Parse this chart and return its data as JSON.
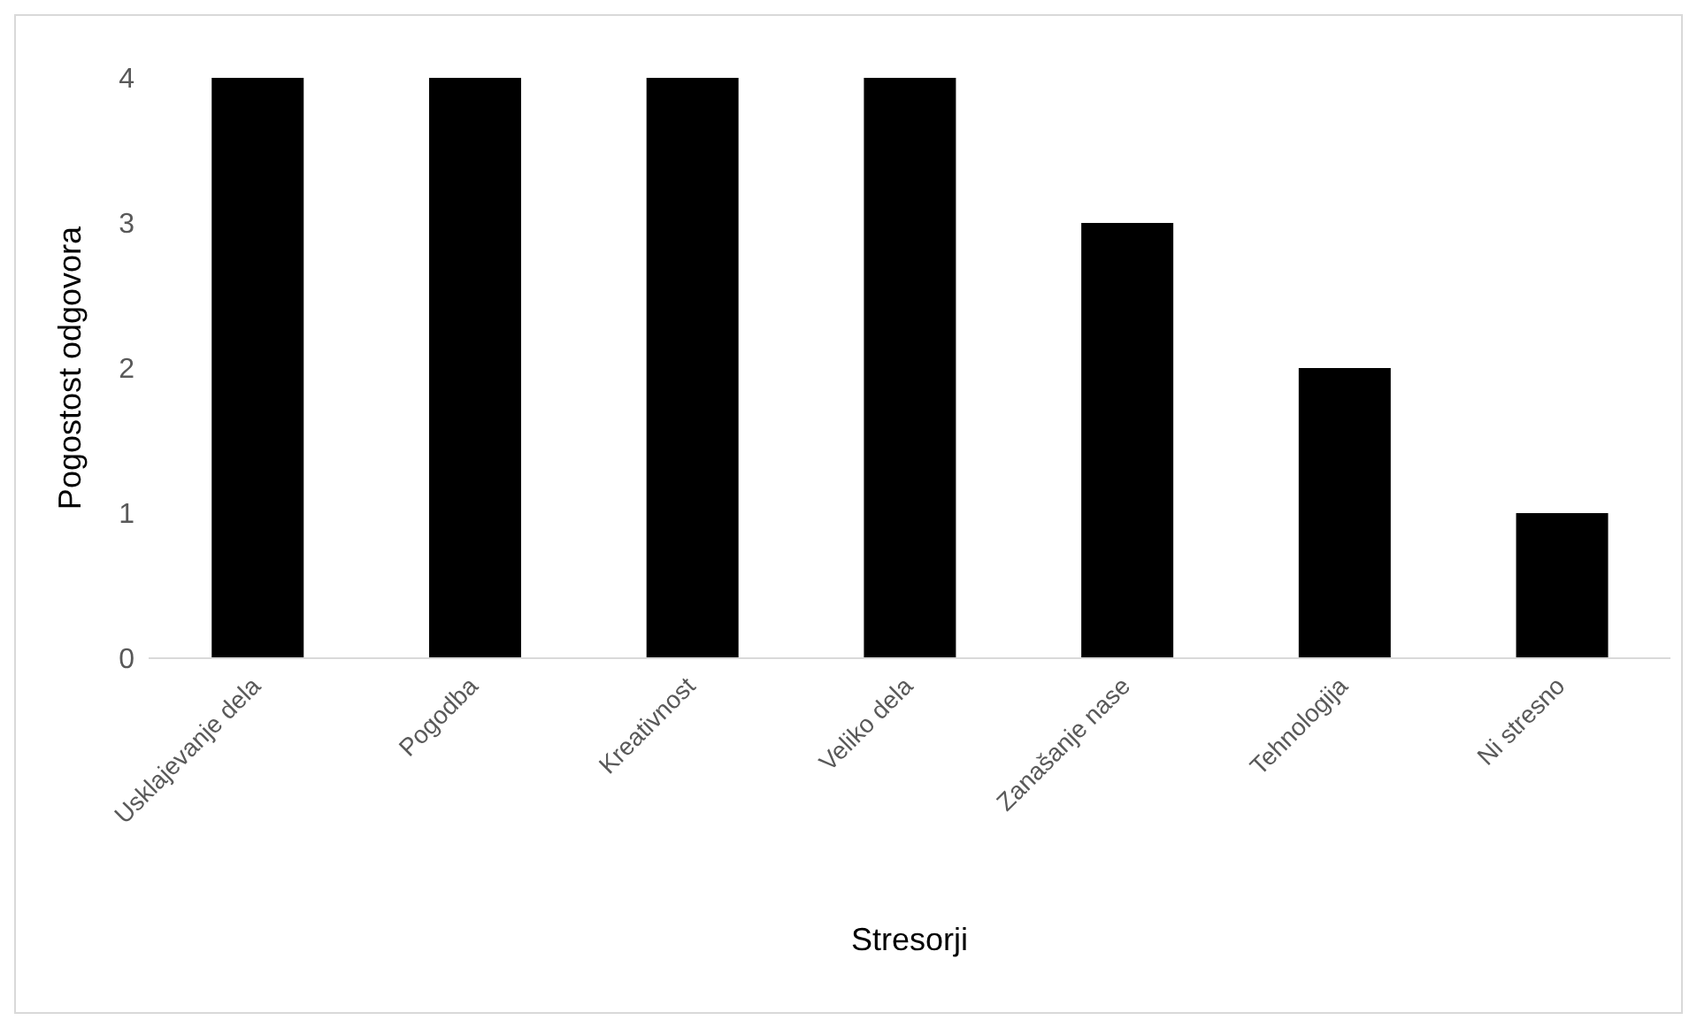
{
  "chart_data": {
    "type": "bar",
    "xlabel": "Stresorji",
    "ylabel": "Pogostost odgovora",
    "categories": [
      "Usklajevanje dela",
      "Pogodba",
      "Kreativnost",
      "Veliko dela",
      "Zanašanje nase",
      "Tehnologija",
      "Ni stresno"
    ],
    "values": [
      4,
      4,
      4,
      4,
      3,
      2,
      1
    ],
    "color": "#000000",
    "ylim": [
      0,
      4
    ],
    "yticks": [
      0,
      1,
      2,
      3,
      4
    ],
    "grid": false,
    "legend": false
  }
}
